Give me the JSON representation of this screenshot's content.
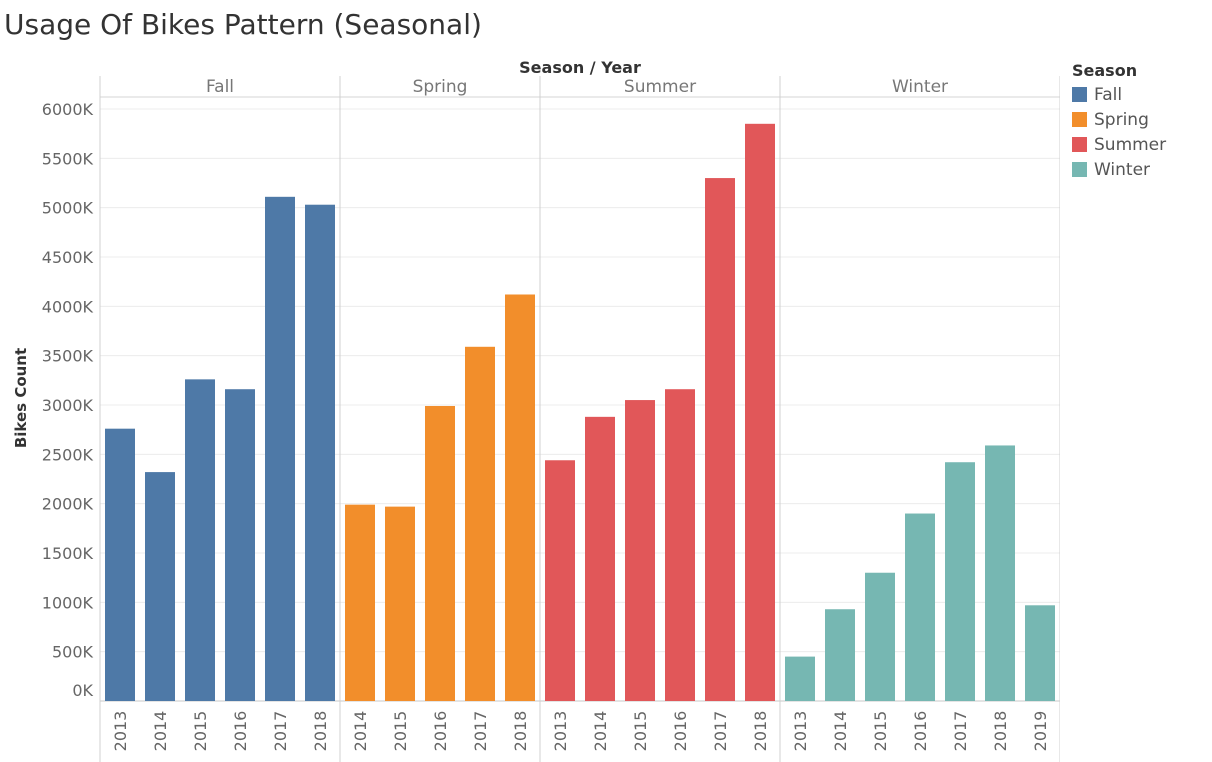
{
  "title": "Usage Of Bikes Pattern (Seasonal)",
  "legend": {
    "title": "Season",
    "items": [
      {
        "label": "Fall",
        "color": "#4e79a7"
      },
      {
        "label": "Spring",
        "color": "#f28e2b"
      },
      {
        "label": "Summer",
        "color": "#e15759"
      },
      {
        "label": "Winter",
        "color": "#76b7b2"
      }
    ]
  },
  "chart_data": {
    "type": "bar",
    "title": "Usage Of Bikes Pattern (Seasonal)",
    "column_header_title": "Season / Year",
    "ylabel": "Bikes Count",
    "ylim": [
      0,
      6000
    ],
    "y_ticks": [
      "0K",
      "500K",
      "1000K",
      "1500K",
      "2000K",
      "2500K",
      "3000K",
      "3500K",
      "4000K",
      "4500K",
      "5000K",
      "5500K",
      "6000K"
    ],
    "grid": true,
    "legend_position": "right",
    "units": "thousands",
    "panels": [
      {
        "season": "Fall",
        "color": "#4e79a7",
        "categories": [
          "2013",
          "2014",
          "2015",
          "2016",
          "2017",
          "2018"
        ],
        "values": [
          2760,
          2320,
          3260,
          3160,
          5110,
          5030
        ]
      },
      {
        "season": "Spring",
        "color": "#f28e2b",
        "categories": [
          "2014",
          "2015",
          "2016",
          "2017",
          "2018"
        ],
        "values": [
          1990,
          1970,
          2990,
          3590,
          4120
        ]
      },
      {
        "season": "Summer",
        "color": "#e15759",
        "categories": [
          "2013",
          "2014",
          "2015",
          "2016",
          "2017",
          "2018"
        ],
        "values": [
          2440,
          2880,
          3050,
          3160,
          5300,
          5850
        ]
      },
      {
        "season": "Winter",
        "color": "#76b7b2",
        "categories": [
          "2013",
          "2014",
          "2015",
          "2016",
          "2017",
          "2018",
          "2019"
        ],
        "values": [
          450,
          930,
          1300,
          1900,
          2420,
          2590,
          970
        ]
      }
    ]
  }
}
